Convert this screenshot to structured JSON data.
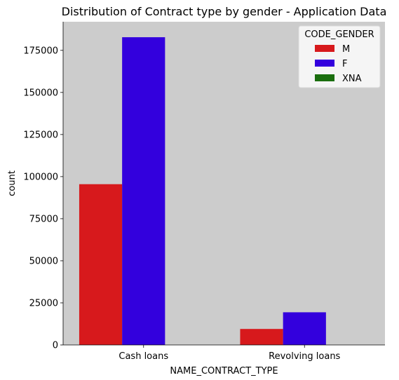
{
  "chart_data": {
    "type": "bar",
    "title": "Distribution of Contract type by gender - Application Data",
    "xlabel": "NAME_CONTRACT_TYPE",
    "ylabel": "count",
    "categories": [
      "Cash loans",
      "Revolving loans"
    ],
    "series": [
      {
        "name": "M",
        "color": "#d7191c",
        "values": [
          95500,
          9500
        ]
      },
      {
        "name": "F",
        "color": "#3300dd",
        "values": [
          182800,
          19400
        ]
      },
      {
        "name": "XNA",
        "color": "#1a6e0e",
        "values": [
          0,
          0
        ]
      }
    ],
    "ylim": [
      0,
      192000
    ],
    "yticks": [
      0,
      25000,
      50000,
      75000,
      100000,
      125000,
      150000,
      175000
    ],
    "legend": {
      "title": "CODE_GENDER",
      "placement": "top-right"
    },
    "background": "#cccccc",
    "grid": false
  }
}
